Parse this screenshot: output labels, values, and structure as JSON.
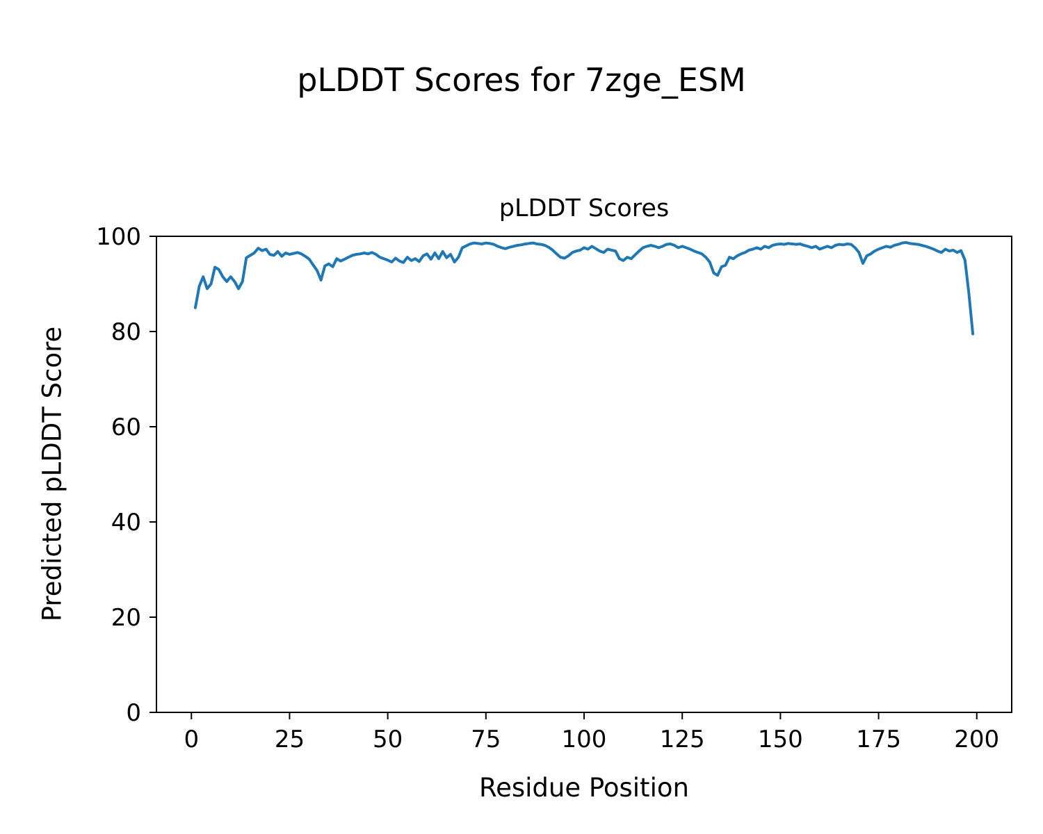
{
  "figure": {
    "suptitle": "pLDDT Scores for 7zge_ESM",
    "axes_title": "pLDDT Scores",
    "xlabel": "Residue Position",
    "ylabel": "Predicted pLDDT Score"
  },
  "chart_data": {
    "type": "line",
    "suptitle": "pLDDT Scores for 7zge_ESM",
    "title": "pLDDT Scores",
    "xlabel": "Residue Position",
    "ylabel": "Predicted pLDDT Score",
    "xlim": [
      -8.9,
      208.9
    ],
    "ylim": [
      0,
      100
    ],
    "xticks": [
      0,
      25,
      50,
      75,
      100,
      125,
      150,
      175,
      200
    ],
    "yticks": [
      0,
      20,
      40,
      60,
      80,
      100
    ],
    "grid": false,
    "legend": "none",
    "line_color": "#1f77b4",
    "line_width": 4,
    "series": [
      {
        "name": "pLDDT",
        "x_start": 1,
        "values": [
          85.0,
          89.5,
          91.5,
          89.0,
          90.0,
          93.5,
          93.0,
          91.5,
          90.5,
          91.5,
          90.5,
          89.0,
          90.5,
          95.5,
          96.0,
          96.5,
          97.5,
          97.0,
          97.3,
          96.2,
          96.0,
          96.8,
          95.8,
          96.5,
          96.2,
          96.4,
          96.6,
          96.3,
          95.8,
          95.2,
          94.0,
          92.8,
          90.8,
          93.8,
          94.2,
          93.6,
          95.3,
          94.8,
          95.2,
          95.6,
          96.0,
          96.2,
          96.3,
          96.5,
          96.3,
          96.6,
          96.2,
          95.6,
          95.3,
          95.0,
          94.6,
          95.4,
          94.8,
          94.5,
          95.6,
          94.9,
          95.3,
          94.7,
          95.9,
          96.3,
          95.2,
          96.5,
          95.3,
          96.8,
          95.5,
          96.2,
          94.6,
          95.6,
          97.6,
          98.0,
          98.4,
          98.6,
          98.5,
          98.4,
          98.6,
          98.5,
          98.3,
          97.9,
          97.6,
          97.4,
          97.7,
          97.9,
          98.1,
          98.2,
          98.4,
          98.5,
          98.6,
          98.4,
          98.3,
          98.1,
          97.7,
          97.1,
          96.3,
          95.6,
          95.4,
          95.9,
          96.6,
          96.9,
          97.1,
          97.6,
          97.3,
          97.9,
          97.4,
          96.9,
          96.6,
          97.3,
          97.1,
          96.9,
          95.3,
          94.9,
          95.6,
          95.3,
          96.1,
          96.9,
          97.6,
          97.9,
          98.1,
          97.9,
          97.6,
          97.9,
          98.3,
          98.4,
          98.1,
          97.6,
          97.9,
          97.6,
          97.3,
          96.9,
          96.6,
          96.3,
          95.6,
          94.6,
          92.3,
          91.8,
          93.6,
          93.9,
          95.6,
          95.3,
          95.9,
          96.3,
          96.6,
          97.1,
          97.3,
          97.6,
          97.3,
          97.9,
          97.6,
          98.1,
          98.3,
          98.4,
          98.3,
          98.5,
          98.4,
          98.3,
          98.4,
          98.1,
          97.9,
          97.6,
          97.9,
          97.3,
          97.6,
          97.9,
          97.6,
          98.1,
          98.3,
          98.2,
          98.4,
          98.3,
          97.6,
          96.6,
          94.3,
          95.9,
          96.3,
          96.9,
          97.3,
          97.6,
          97.9,
          97.7,
          98.1,
          98.3,
          98.6,
          98.7,
          98.5,
          98.4,
          98.3,
          98.1,
          97.9,
          97.6,
          97.3,
          96.9,
          96.6,
          97.3,
          96.9,
          97.1,
          96.6,
          97.0,
          95.0,
          88.0,
          79.5
        ]
      }
    ]
  }
}
